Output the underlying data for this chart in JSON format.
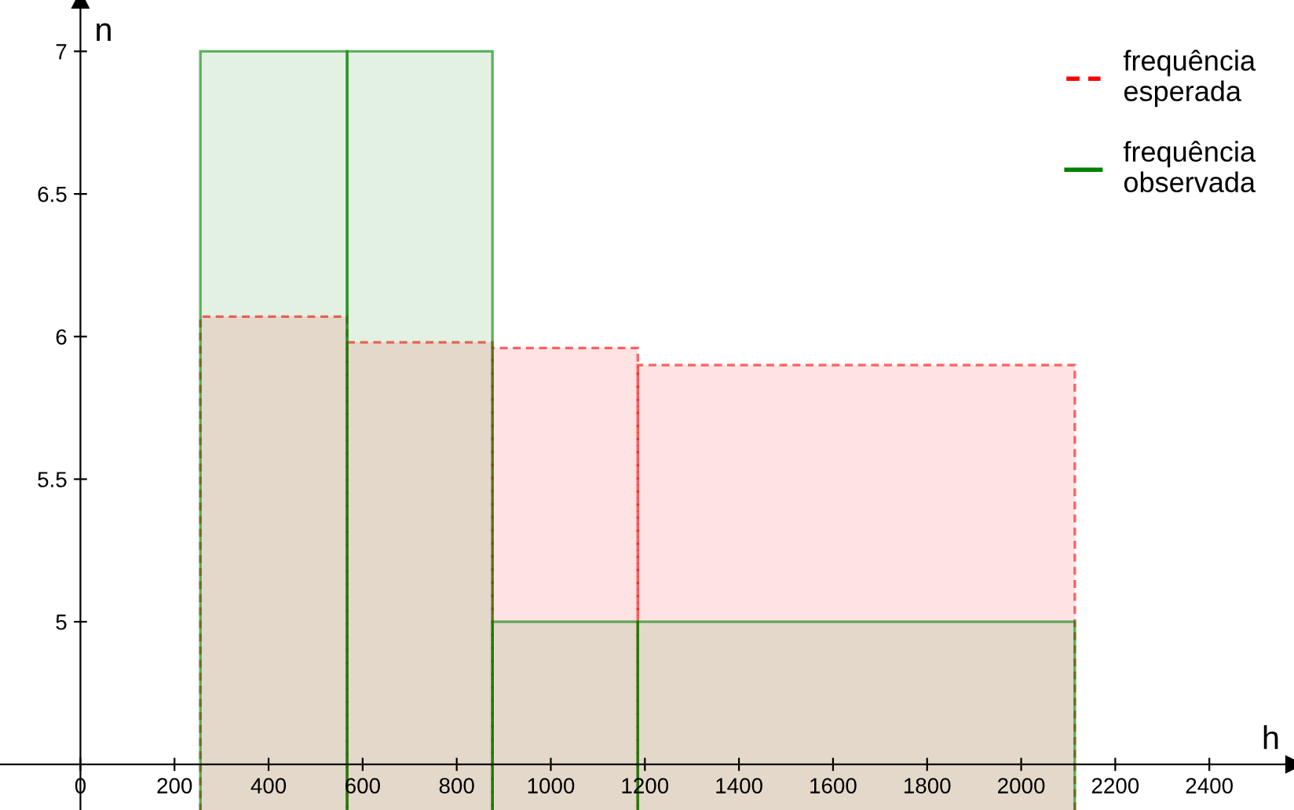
{
  "chart_data": {
    "type": "histogram",
    "xlabel": "h",
    "ylabel": "n",
    "bins": [
      255,
      567,
      876,
      1185,
      2114
    ],
    "series": [
      {
        "name": "frequência esperada",
        "color": "#ff0000",
        "values": [
          6.07,
          5.98,
          5.96,
          5.9
        ],
        "line_style": "dashed"
      },
      {
        "name": "frequência observada",
        "color": "#008000",
        "values": [
          7,
          7,
          5,
          5
        ],
        "line_style": "solid"
      }
    ],
    "xlim": [
      -171,
      2580
    ],
    "ylim": [
      4.34,
      7.18
    ],
    "xticks": [
      0,
      200,
      400,
      600,
      800,
      1000,
      1200,
      1400,
      1600,
      1800,
      2000,
      2200,
      2400
    ],
    "yticks": [
      5,
      5.5,
      6,
      6.5,
      7
    ],
    "legend": "top right"
  }
}
